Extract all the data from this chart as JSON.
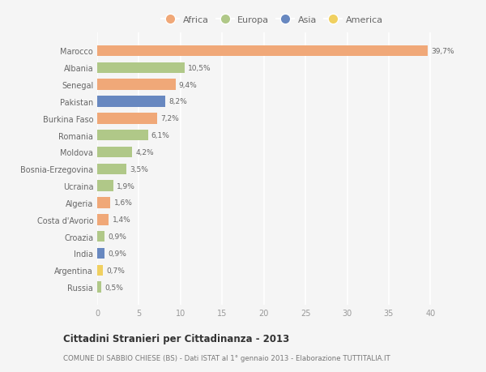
{
  "countries": [
    "Marocco",
    "Albania",
    "Senegal",
    "Pakistan",
    "Burkina Faso",
    "Romania",
    "Moldova",
    "Bosnia-Erzegovina",
    "Ucraina",
    "Algeria",
    "Costa d'Avorio",
    "Croazia",
    "India",
    "Argentina",
    "Russia"
  ],
  "values": [
    39.7,
    10.5,
    9.4,
    8.2,
    7.2,
    6.1,
    4.2,
    3.5,
    1.9,
    1.6,
    1.4,
    0.9,
    0.9,
    0.7,
    0.5
  ],
  "labels": [
    "39,7%",
    "10,5%",
    "9,4%",
    "8,2%",
    "7,2%",
    "6,1%",
    "4,2%",
    "3,5%",
    "1,9%",
    "1,6%",
    "1,4%",
    "0,9%",
    "0,9%",
    "0,7%",
    "0,5%"
  ],
  "continents": [
    "Africa",
    "Europa",
    "Africa",
    "Asia",
    "Africa",
    "Europa",
    "Europa",
    "Europa",
    "Europa",
    "Africa",
    "Africa",
    "Europa",
    "Asia",
    "America",
    "Europa"
  ],
  "continent_colors": {
    "Africa": "#F0A878",
    "Europa": "#B0C888",
    "Asia": "#6888C0",
    "America": "#F0D060"
  },
  "legend_order": [
    "Africa",
    "Europa",
    "Asia",
    "America"
  ],
  "title": "Cittadini Stranieri per Cittadinanza - 2013",
  "subtitle": "COMUNE DI SABBIO CHIESE (BS) - Dati ISTAT al 1° gennaio 2013 - Elaborazione TUTTITALIA.IT",
  "xlim": [
    0,
    42
  ],
  "xticks": [
    0,
    5,
    10,
    15,
    20,
    25,
    30,
    35,
    40
  ],
  "background_color": "#f5f5f5",
  "grid_color": "#ffffff"
}
